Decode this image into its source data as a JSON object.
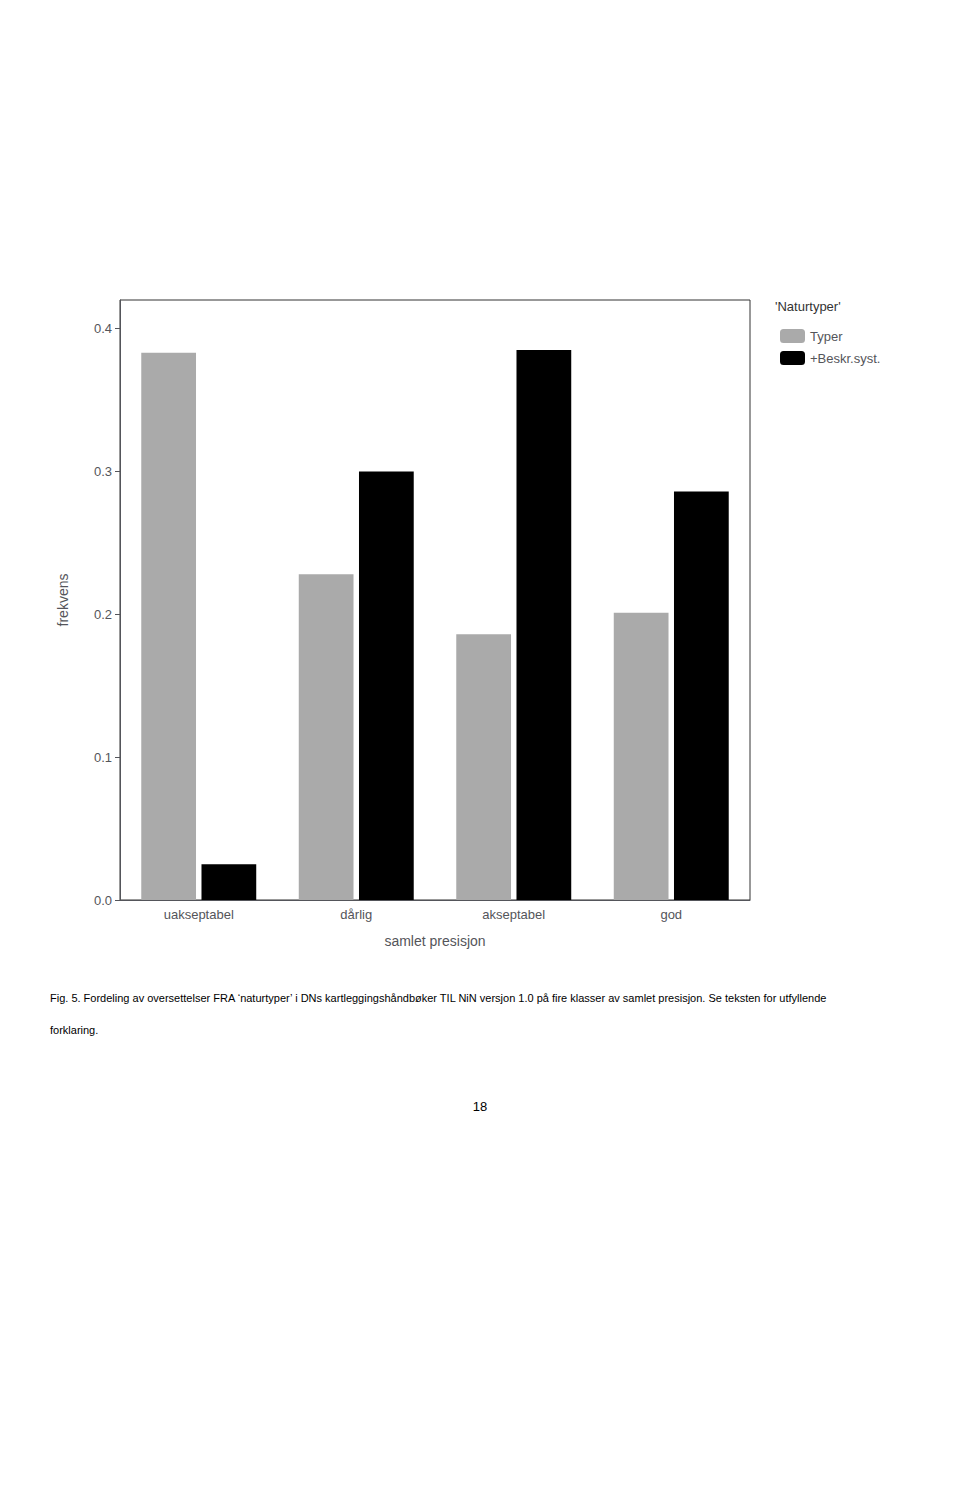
{
  "chart_data": {
    "type": "bar",
    "categories": [
      "uakseptabel",
      "dårlig",
      "akseptabel",
      "god"
    ],
    "series": [
      {
        "name": "Typer",
        "color": "#aaaaaa",
        "values": [
          0.383,
          0.228,
          0.186,
          0.201
        ]
      },
      {
        "name": "+Beskr.syst.",
        "color": "#000000",
        "values": [
          0.025,
          0.3,
          0.385,
          0.286
        ]
      }
    ],
    "xlabel": "samlet presisjon",
    "ylabel": "frekvens",
    "ylim": [
      0.0,
      0.42
    ],
    "yticks": [
      {
        "value": 0,
        "label": "0.0"
      },
      0.1,
      0.2,
      0.3,
      0.4
    ],
    "grid": false,
    "legend": "upper right",
    "legend_title": "'Naturtyper'",
    "annotations": [
      "Fig. 5. Fordeling av oversettelser FRA ‘naturtyper’ i DNs kartleggingshåndbøker TIL NiN versjon 1.0 på fire klasser av samlet presisjon. Se teksten for utfyllende",
      "forklaring.",
      "18"
    ]
  }
}
